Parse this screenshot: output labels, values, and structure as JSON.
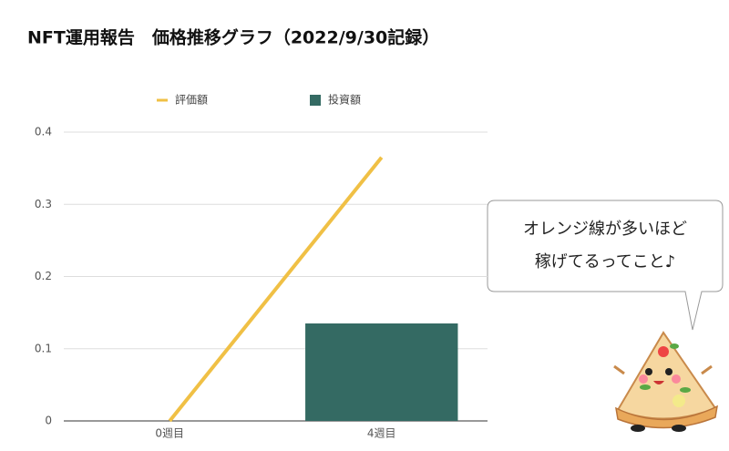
{
  "chart_data": {
    "type": "combo",
    "title": "NFT運用報告　価格推移グラフ（2022/9/30記録）",
    "categories": [
      "0週目",
      "4週目"
    ],
    "series": [
      {
        "name": "評価額",
        "type": "line",
        "color": "#f0c045",
        "values": [
          0,
          0.365
        ]
      },
      {
        "name": "投資額",
        "type": "bar",
        "color": "#346a63",
        "values": [
          null,
          0.135
        ]
      }
    ],
    "ylim": [
      0,
      0.4
    ],
    "yticks": [
      0,
      0.1,
      0.2,
      0.3,
      0.4
    ],
    "grid": true,
    "legend": "top",
    "annotation": [
      "オレンジ線が多いほど",
      "稼げてるってこと♪"
    ]
  }
}
